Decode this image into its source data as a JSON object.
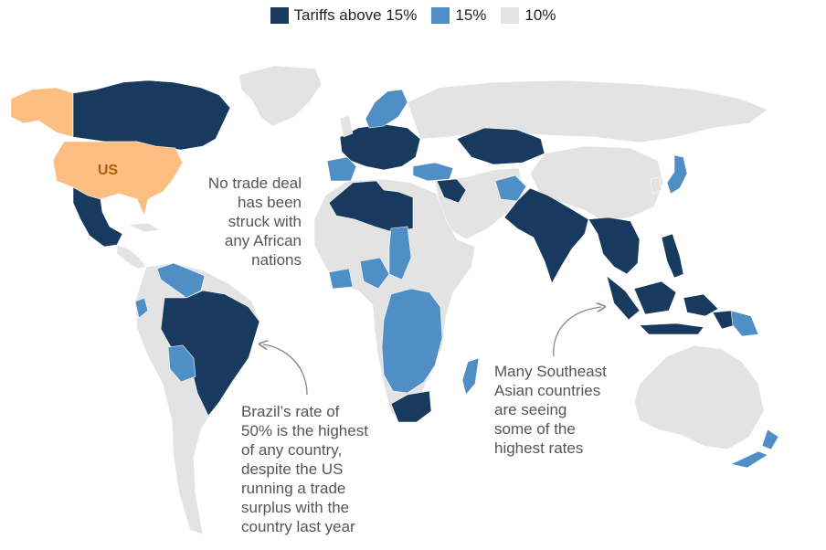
{
  "legend": {
    "items": [
      {
        "label": "Tariffs above 15%",
        "color": "#173a5e"
      },
      {
        "label": "15%",
        "color": "#4f8fc6"
      },
      {
        "label": "10%",
        "color": "#e3e3e3"
      }
    ]
  },
  "colors": {
    "us": "#fbbd80",
    "us_label": "#b35e08",
    "ocean": "#ffffff",
    "border": "#ffffff"
  },
  "map": {
    "us_label": "US"
  },
  "annotations": {
    "africa": [
      "No trade deal",
      "has been",
      "struck with",
      "any African",
      "nations"
    ],
    "brazil": [
      "Brazil’s rate of",
      "50% is the highest",
      "of any country,",
      "despite the US",
      "running a trade",
      "surplus with the",
      "country last year"
    ],
    "southeast_asia": [
      "Many Southeast",
      "Asian countries",
      "are seeing",
      "some of the",
      "highest rates"
    ]
  }
}
